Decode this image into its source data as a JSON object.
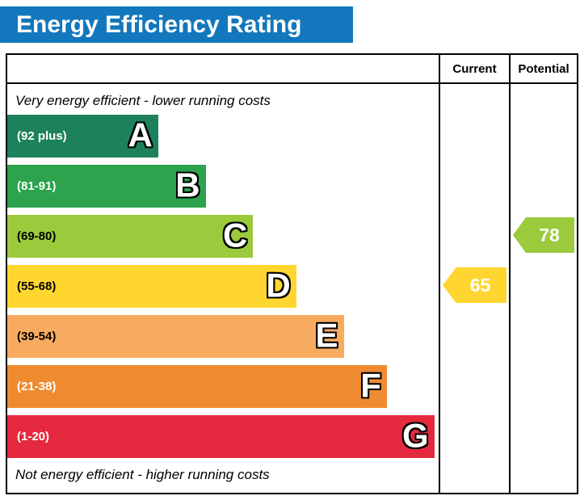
{
  "title": "Energy Efficiency Rating",
  "title_bg": "#1277bd",
  "columns": {
    "current": "Current",
    "potential": "Potential"
  },
  "captions": {
    "top": "Very energy efficient - lower running costs",
    "bottom": "Not energy efficient - higher running costs"
  },
  "chart_data": {
    "type": "bar",
    "title": "Energy Efficiency Rating",
    "orientation": "horizontal",
    "top_caption": "Very energy efficient - lower running costs",
    "bottom_caption": "Not energy efficient - higher running costs",
    "columns": [
      "Current",
      "Potential"
    ],
    "bands": [
      {
        "letter": "A",
        "range": "(92 plus)",
        "color": "#1d825c",
        "label_color": "#ffffff",
        "width_pct": 35
      },
      {
        "letter": "B",
        "range": "(81-91)",
        "color": "#2ca34c",
        "label_color": "#ffffff",
        "width_pct": 46
      },
      {
        "letter": "C",
        "range": "(69-80)",
        "color": "#9bca3c",
        "label_color": "#000000",
        "width_pct": 57
      },
      {
        "letter": "D",
        "range": "(55-68)",
        "color": "#ffd630",
        "label_color": "#000000",
        "width_pct": 67
      },
      {
        "letter": "E",
        "range": "(39-54)",
        "color": "#f7ab5f",
        "label_color": "#000000",
        "width_pct": 78
      },
      {
        "letter": "F",
        "range": "(21-38)",
        "color": "#ee8b31",
        "label_color": "#ffffff",
        "width_pct": 88
      },
      {
        "letter": "G",
        "range": "(1-20)",
        "color": "#e5293e",
        "label_color": "#ffffff",
        "width_pct": 99
      }
    ],
    "current": {
      "value": 65,
      "band": "D",
      "color": "#ffd630"
    },
    "potential": {
      "value": 78,
      "band": "C",
      "color": "#9bca3c"
    }
  }
}
